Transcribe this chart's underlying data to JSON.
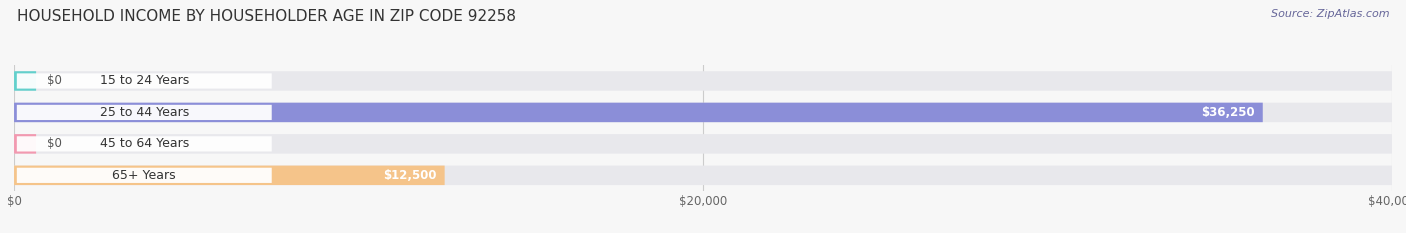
{
  "title": "HOUSEHOLD INCOME BY HOUSEHOLDER AGE IN ZIP CODE 92258",
  "source": "Source: ZipAtlas.com",
  "categories": [
    "15 to 24 Years",
    "25 to 44 Years",
    "45 to 64 Years",
    "65+ Years"
  ],
  "values": [
    0,
    36250,
    0,
    12500
  ],
  "bar_colors": [
    "#62d0cc",
    "#8b8ed8",
    "#f299b0",
    "#f5c48a"
  ],
  "label_bg_color": "#ffffff",
  "background_color": "#f7f7f7",
  "bar_bg_color": "#e8e8ec",
  "xlim": [
    0,
    40000
  ],
  "xticks": [
    0,
    20000,
    40000
  ],
  "xtick_labels": [
    "$0",
    "$20,000",
    "$40,000"
  ],
  "bar_height": 0.62,
  "figsize": [
    14.06,
    2.33
  ],
  "dpi": 100,
  "title_fontsize": 11,
  "source_fontsize": 8,
  "label_fontsize": 9,
  "value_fontsize": 8.5
}
